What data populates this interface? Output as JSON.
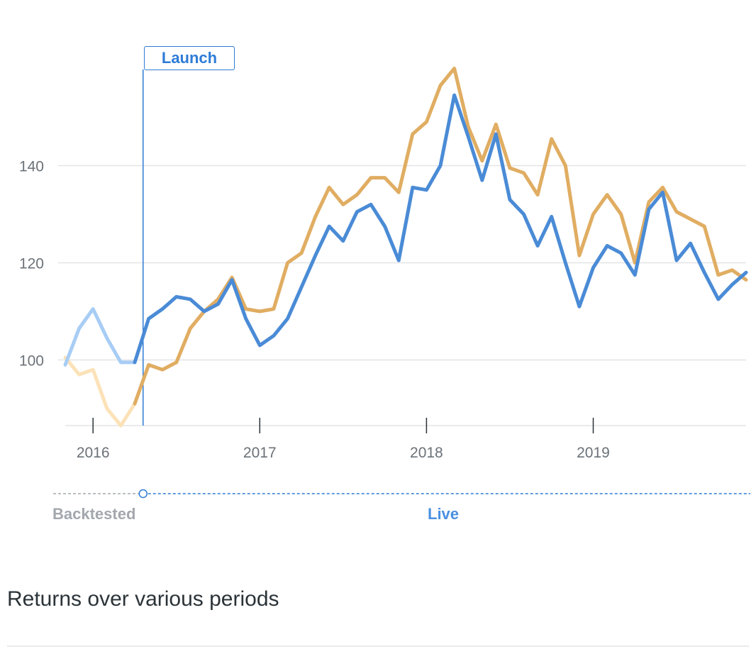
{
  "launch_label": "Launch",
  "phase_labels": {
    "backtested": "Backtested",
    "live": "Live"
  },
  "section_title": "Returns over various periods",
  "colors": {
    "series_blue": "#4a8bd6",
    "series_blue_backtested": "#a8cdf5",
    "series_gold": "#e0ad62",
    "series_gold_backtested": "#fce2b8",
    "launch": "#2e7bd6",
    "grid": "#e2e4e6",
    "axis_text": "#6b7278"
  },
  "chart_data": {
    "type": "line",
    "x_start": "2015-11",
    "x_step": "1 month",
    "launch_index": 6,
    "xticks": [
      "2016",
      "2017",
      "2018",
      "2019"
    ],
    "yticks": [
      100,
      120,
      140
    ],
    "ylim": [
      86,
      163
    ],
    "grid": true,
    "series": [
      {
        "values": [
          99,
          106.5,
          110.5,
          104.5,
          99.5,
          99.5,
          108.5,
          110.5,
          113,
          112.5,
          110,
          111.5,
          116.5,
          108.5,
          103,
          105,
          108.5,
          115,
          121.5,
          127.5,
          124.5,
          130.5,
          132,
          127.5,
          120.5,
          135.5,
          135,
          140,
          154.5,
          146,
          137,
          146.5,
          133,
          130,
          123.5,
          129.5,
          120,
          111,
          119,
          123.5,
          122,
          117.5,
          131,
          134.5,
          120.5,
          124,
          118,
          112.5,
          115.5,
          118
        ]
      },
      {
        "values": [
          100.5,
          97,
          98,
          90,
          86.5,
          91,
          99,
          98,
          99.5,
          106.5,
          110,
          112.5,
          117,
          110.5,
          110,
          110.5,
          120,
          122,
          129.5,
          135.5,
          132,
          134,
          137.5,
          137.5,
          134.5,
          146.5,
          149,
          156.5,
          160,
          148,
          141,
          148.5,
          139.5,
          138.5,
          134,
          145.5,
          140,
          121.5,
          130,
          134,
          130,
          120,
          132.5,
          135.5,
          130.5,
          129,
          127.5,
          117.5,
          118.5,
          116.5
        ]
      }
    ]
  }
}
